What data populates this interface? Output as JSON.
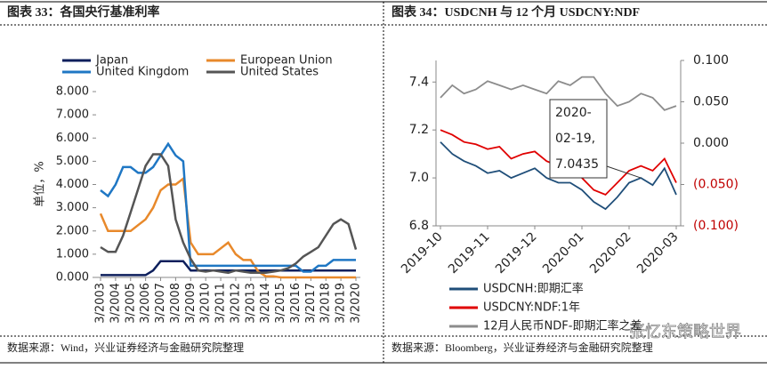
{
  "chart_data": [
    {
      "type": "line",
      "title": "图表 33：各国央行基准利率",
      "source": "数据来源：Wind，兴业证券经济与金融研究院整理",
      "ylabel": "单位，%",
      "legend": "top",
      "categories": [
        "3/2003",
        null,
        "3/2004",
        null,
        "3/2005",
        null,
        "3/2006",
        null,
        "3/2007",
        null,
        "3/2008",
        null,
        "3/2009",
        null,
        "3/2010",
        null,
        "3/2011",
        null,
        "3/2012",
        null,
        "3/2013",
        null,
        "3/2014",
        null,
        "3/2015",
        null,
        "3/2016",
        null,
        "3/2017",
        null,
        "3/2018",
        null,
        "3/2019",
        null,
        "3/2020"
      ],
      "ylim": [
        0,
        8
      ],
      "yticks": [
        {
          "value": 0,
          "label": "0.000"
        },
        {
          "value": 1,
          "label": "1.000"
        },
        {
          "value": 2,
          "label": "2.000"
        },
        {
          "value": 3,
          "label": "3.000"
        },
        {
          "value": 4,
          "label": "4.000"
        },
        {
          "value": 5,
          "label": "5.000"
        },
        {
          "value": 6,
          "label": "6.000"
        },
        {
          "value": 7,
          "label": "7.000"
        },
        {
          "value": 8,
          "label": "8.000"
        }
      ],
      "series": [
        {
          "name": "Japan",
          "color": "#0d1f5c",
          "values": [
            0.1,
            0.1,
            0.1,
            0.1,
            0.1,
            0.1,
            0.1,
            0.3,
            0.7,
            0.7,
            0.7,
            0.7,
            0.3,
            0.3,
            0.3,
            0.3,
            0.3,
            0.3,
            0.3,
            0.3,
            0.3,
            0.3,
            0.3,
            0.3,
            0.3,
            0.3,
            0.3,
            0.3,
            0.3,
            0.3,
            0.3,
            0.3,
            0.3,
            0.3,
            0.3
          ]
        },
        {
          "name": "European Union",
          "color": "#e8892b",
          "values": [
            2.75,
            2.0,
            2.0,
            2.0,
            2.0,
            2.25,
            2.5,
            3.0,
            3.75,
            4.0,
            4.0,
            4.25,
            1.5,
            1.0,
            1.0,
            1.0,
            1.25,
            1.5,
            1.0,
            0.75,
            0.75,
            0.25,
            0.05,
            0.05,
            0,
            0,
            0,
            0,
            0,
            0,
            0,
            0,
            0,
            0,
            0
          ]
        },
        {
          "name": "United Kingdom",
          "color": "#1f77c4",
          "values": [
            3.75,
            3.5,
            4.0,
            4.75,
            4.75,
            4.5,
            4.5,
            4.75,
            5.25,
            5.75,
            5.25,
            5.0,
            0.5,
            0.5,
            0.5,
            0.5,
            0.5,
            0.5,
            0.5,
            0.5,
            0.5,
            0.5,
            0.5,
            0.5,
            0.5,
            0.5,
            0.5,
            0.25,
            0.25,
            0.5,
            0.5,
            0.75,
            0.75,
            0.75,
            0.75
          ]
        },
        {
          "name": "United States",
          "color": "#555555",
          "values": [
            1.3,
            1.1,
            1.1,
            1.8,
            2.8,
            3.8,
            4.8,
            5.3,
            5.3,
            4.8,
            2.5,
            1.5,
            0.8,
            0.3,
            0.25,
            0.3,
            0.25,
            0.2,
            0.3,
            0.25,
            0.2,
            0.2,
            0.2,
            0.25,
            0.3,
            0.4,
            0.6,
            0.9,
            1.1,
            1.3,
            1.8,
            2.3,
            2.5,
            2.3,
            1.2
          ]
        }
      ]
    },
    {
      "type": "line",
      "title": "图表 34：USDCNH 与 12 个月 USDCNY:NDF",
      "source": "数据来源：Bloomberg，兴业证券经济与金融研究院整理",
      "legend": "bottom",
      "categories": [
        "2019-10",
        null,
        null,
        null,
        "2019-11",
        null,
        null,
        null,
        "2019-12",
        null,
        null,
        null,
        "2020-01",
        null,
        null,
        null,
        "2020-02",
        null,
        null,
        null,
        "2020-03"
      ],
      "ylim": [
        6.8,
        7.49
      ],
      "yticks": [
        6.8,
        {
          "value": 7,
          "label": "7.0"
        },
        7.2,
        7.4
      ],
      "y2lim": [
        -0.1,
        0.1
      ],
      "y2ticks": [
        {
          "value": -0.1,
          "label": "(0.100)"
        },
        {
          "value": -0.05,
          "label": "(0.050)"
        },
        {
          "value": 0,
          "label": "0.000"
        },
        {
          "value": 0.05,
          "label": "0.050"
        },
        {
          "value": 0.1,
          "label": "0.100"
        }
      ],
      "annotation": [
        "2020-",
        "02-19,",
        "7.0435"
      ],
      "series": [
        {
          "name": "USDCNH:即期汇率",
          "color": "#1f4e79",
          "values": [
            7.15,
            7.1,
            7.07,
            7.05,
            7.02,
            7.03,
            7.0,
            7.02,
            7.04,
            7.0,
            6.98,
            6.98,
            6.95,
            6.9,
            6.87,
            6.92,
            6.98,
            7.0,
            6.97,
            7.04,
            6.93
          ]
        },
        {
          "name": "USDCNY:NDF:1年",
          "color": "#e00000",
          "values": [
            7.2,
            7.18,
            7.15,
            7.14,
            7.12,
            7.13,
            7.08,
            7.1,
            7.11,
            7.07,
            7.05,
            7.04,
            7.0,
            6.95,
            6.93,
            6.98,
            7.03,
            7.05,
            7.03,
            7.08,
            6.98
          ]
        },
        {
          "name": "12月人民币NDF-即期汇率之差",
          "color": "#8c8c8c",
          "axis": "y2",
          "values": [
            0.055,
            0.07,
            0.06,
            0.065,
            0.075,
            0.07,
            0.065,
            0.07,
            0.065,
            0.06,
            0.075,
            0.07,
            0.08,
            0.08,
            0.06,
            0.045,
            0.05,
            0.06,
            0.055,
            0.04,
            0.045
          ]
        }
      ]
    }
  ],
  "watermark": "张忆东策略世界"
}
